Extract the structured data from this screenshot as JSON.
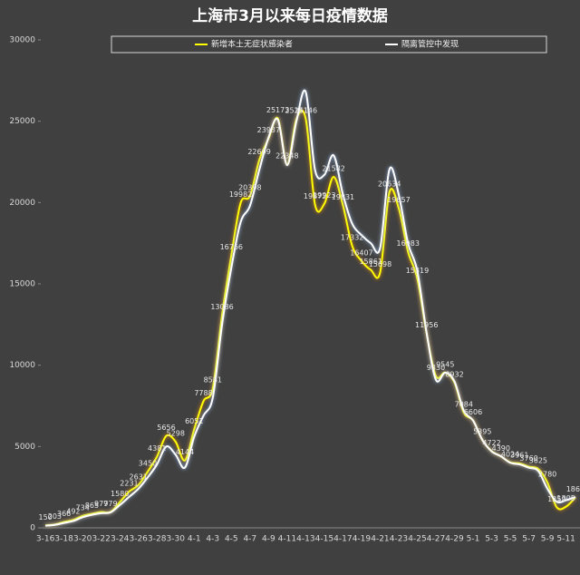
{
  "chart_data": {
    "type": "line",
    "title": "上海市3月以来每日疫情数据",
    "categories": [
      "3-16",
      null,
      "3-18",
      null,
      "3-20",
      null,
      "3-22",
      null,
      "3-24",
      null,
      "3-26",
      null,
      "3-28",
      null,
      "3-30",
      null,
      "4-1",
      null,
      "4-3",
      null,
      "4-5",
      null,
      "4-7",
      null,
      "4-9",
      null,
      "4-11",
      null,
      "4-13",
      null,
      "4-15",
      null,
      "4-17",
      null,
      "4-19",
      null,
      "4-21",
      null,
      "4-23",
      null,
      "4-25",
      null,
      "4-27",
      null,
      "4-29",
      null,
      "5-1",
      null,
      "5-3",
      null,
      "5-5",
      null,
      "5-7",
      null,
      "5-9",
      null,
      "5-11",
      null
    ],
    "series": [
      {
        "name": "新增本土无症状感染者",
        "color": "#ffff00",
        "values": [
          150,
          203,
          366,
          492,
          734,
          865,
          977,
          979,
          1580,
          2231,
          2631,
          3450,
          4381,
          5656,
          5298,
          4144,
          6051,
          7788,
          8581,
          13086,
          16766,
          19982,
          20398,
          22609,
          23937,
          25173,
          22348,
          25141,
          25146,
          19872,
          19923,
          21582,
          19831,
          17332,
          16407,
          15861,
          15698,
          20634,
          19657,
          16983,
          15319,
          11956,
          9330,
          9545,
          8932,
          7084,
          6606,
          5395,
          4722,
          4390,
          4024,
          3961,
          3760,
          3625,
          2780,
          1259,
          1305,
          1869
        ]
      },
      {
        "name": "隔离管控中发现",
        "color": "#ffffff",
        "values": [
          130,
          180,
          300,
          420,
          650,
          800,
          900,
          950,
          1400,
          1900,
          2400,
          3100,
          3900,
          5000,
          4500,
          3700,
          5600,
          6900,
          8000,
          12500,
          16000,
          18800,
          19800,
          22000,
          24000,
          25100,
          22300,
          25000,
          26800,
          22000,
          21700,
          22900,
          20500,
          18700,
          18000,
          17500,
          17200,
          22032,
          20500,
          17500,
          15795,
          12000,
          9100,
          9545,
          9000,
          7200,
          6600,
          5400,
          4700,
          4400,
          4000,
          3900,
          3700,
          3500,
          2400,
          1600,
          1700,
          1900
        ]
      }
    ],
    "ylim": [
      0,
      30000
    ],
    "yticks": [
      0,
      5000,
      10000,
      15000,
      20000,
      25000,
      30000
    ]
  }
}
